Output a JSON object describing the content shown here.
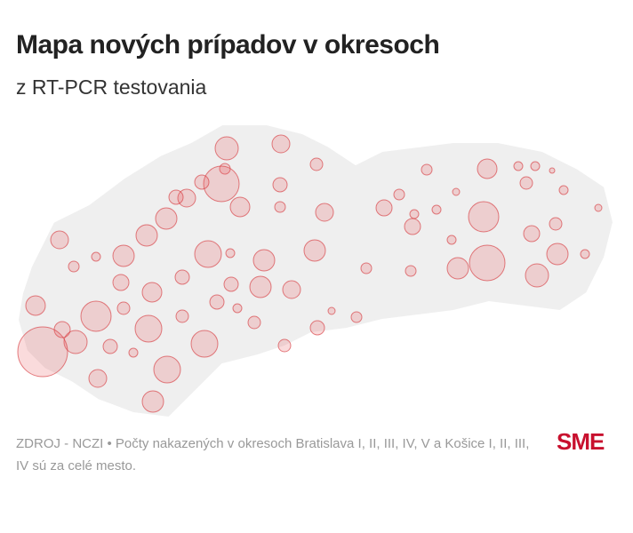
{
  "header": {
    "title": "Mapa nových prípadov v okresoch",
    "subtitle": "z RT-PCR testovania"
  },
  "footer": {
    "source": "ZDROJ - NCZI • Počty nakazených v okresoch Bratislava I, II, III, IV, V a Košice I, II, III, IV sú za celé mesto.",
    "logo": "SME"
  }
}
